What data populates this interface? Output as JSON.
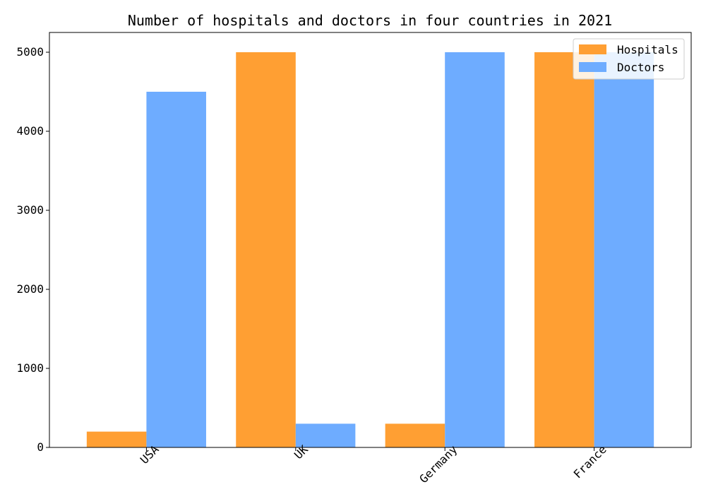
{
  "chart_data": {
    "type": "bar",
    "title": "Number of hospitals and doctors in four countries in 2021",
    "xlabel": "",
    "ylabel": "",
    "categories": [
      "USA",
      "UK",
      "Germany",
      "France"
    ],
    "series": [
      {
        "name": "Hospitals",
        "values": [
          200,
          5000,
          300,
          5000
        ],
        "color": "#FF9F33"
      },
      {
        "name": "Doctors",
        "values": [
          4500,
          300,
          5000,
          5000
        ],
        "color": "#6EACFF"
      }
    ],
    "ylim": [
      0,
      5250
    ],
    "yticks": [
      0,
      1000,
      2000,
      3000,
      4000,
      5000
    ],
    "ytick_labels": [
      "0",
      "1000",
      "2000",
      "3000",
      "4000",
      "5000"
    ],
    "grid": false,
    "legend": "top-right",
    "xtick_rotation_deg": 45
  }
}
